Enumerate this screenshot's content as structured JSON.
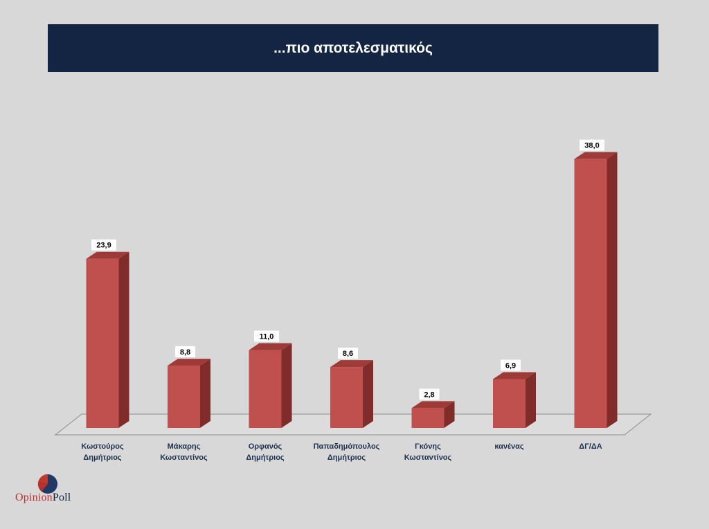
{
  "title": "...πιο αποτελεσματικός",
  "logo": {
    "part1": "Opinion",
    "part2": "Poll"
  },
  "colors": {
    "background": "#d8d8d8",
    "title_bar": "#132542",
    "bar_front": "#c0504d",
    "bar_side": "#7f2c2a",
    "bar_top": "#9e3a37"
  },
  "chart_data": {
    "type": "bar",
    "style": "3d-column",
    "categories": [
      [
        "Κωστούρος",
        "Δημήτριος"
      ],
      [
        "Μάκαρης",
        "Κωσταντίνος"
      ],
      [
        "Ορφανός",
        "Δημήτριος"
      ],
      [
        "Παπαδημόπουλος",
        "Δημήτριος"
      ],
      [
        "Γκόνης",
        "Κωσταντίνος"
      ],
      [
        "κανένας"
      ],
      [
        "ΔΓ/ΔΑ"
      ]
    ],
    "values": [
      23.9,
      8.8,
      11.0,
      8.6,
      2.8,
      6.9,
      38.0
    ],
    "value_labels": [
      "23,9",
      "8,8",
      "11,0",
      "8,6",
      "2,8",
      "6,9",
      "38,0"
    ],
    "ylim": [
      0,
      40
    ],
    "grid": false,
    "legend": false
  }
}
